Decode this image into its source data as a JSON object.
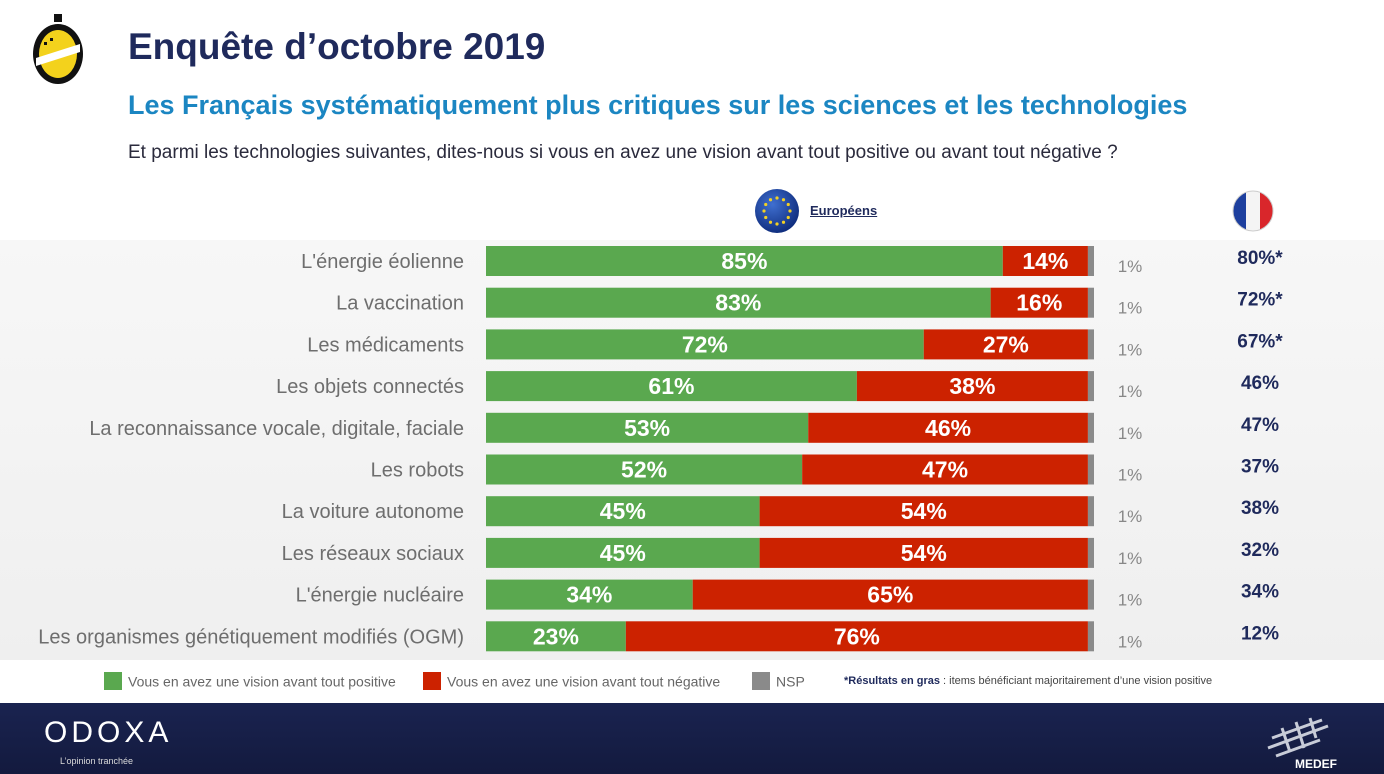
{
  "header": {
    "title": "Enquête d’octobre 2019",
    "subtitle": "Les Français systématiquement plus critiques sur les sciences et les technologies",
    "question": "Et parmi les technologies suivantes, dites-nous si vous en avez une vision avant tout positive ou avant tout négative ?"
  },
  "column_labels": {
    "europeans": "Européens"
  },
  "chart_data": {
    "type": "bar",
    "orientation": "horizontal",
    "stacked": true,
    "categories": [
      "L'énergie éolienne",
      "La vaccination",
      "Les médicaments",
      "Les objets connectés",
      "La reconnaissance vocale, digitale, faciale",
      "Les robots",
      "La voiture autonome",
      "Les réseaux sociaux",
      "L'énergie nucléaire",
      "Les organismes génétiquement modifiés (OGM)"
    ],
    "series": [
      {
        "name": "Vous en avez une vision avant tout positive",
        "color": "#5aa84f",
        "values": [
          85,
          83,
          72,
          61,
          53,
          52,
          45,
          45,
          34,
          23
        ]
      },
      {
        "name": "Vous en avez une vision avant tout négative",
        "color": "#cc2200",
        "values": [
          14,
          16,
          27,
          38,
          46,
          47,
          54,
          54,
          65,
          76
        ]
      },
      {
        "name": "NSP",
        "color": "#8a8a8a",
        "values": [
          1,
          1,
          1,
          1,
          1,
          1,
          1,
          1,
          1,
          1
        ]
      }
    ],
    "nsp_labels": [
      "1%",
      "1%",
      "1%",
      "1%",
      "1%",
      "1%",
      "1%",
      "1%",
      "1%",
      "1%"
    ],
    "france_labels": [
      "80%*",
      "72%*",
      "67%*",
      "46%",
      "47%",
      "37%",
      "38%",
      "32%",
      "34%",
      "12%"
    ],
    "xlim": [
      0,
      100
    ]
  },
  "legend": {
    "positive": "Vous en avez une vision avant tout positive",
    "negative": "Vous en avez une vision avant tout négative",
    "nsp": "NSP",
    "note_bold": "*Résultats en gras",
    "note_rest": " : items bénéficiant majoritairement d’une vision positive"
  },
  "footer": {
    "brand": "ODOXA",
    "tagline": "L’opinion tranchée",
    "partner": "MEDEF"
  }
}
